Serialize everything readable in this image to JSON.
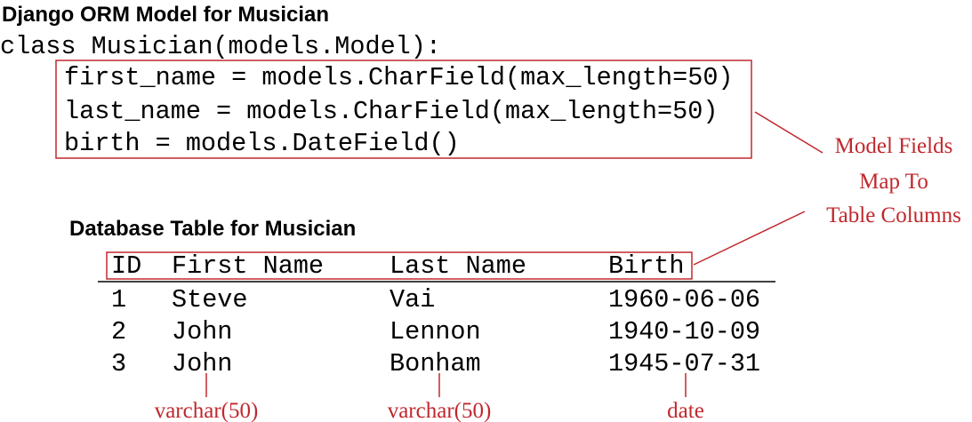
{
  "title": "Django ORM Model for Musician",
  "code": {
    "class_line": "class Musician(models.Model):",
    "fields": [
      "first_name = models.CharField(max_length=50)",
      "last_name = models.CharField(max_length=50)",
      "birth = models.DateField()"
    ]
  },
  "annotation": [
    "Model Fields",
    "Map To",
    "Table Columns"
  ],
  "table": {
    "title": "Database Table for Musician",
    "header": [
      "ID",
      "First Name",
      "Last Name",
      "Birth"
    ],
    "rows": [
      [
        "1",
        "Steve",
        "Vai",
        "1960-06-06"
      ],
      [
        "2",
        "John",
        "Lennon",
        "1940-10-09"
      ],
      [
        "3",
        "John",
        "Bonham",
        "1945-07-31"
      ]
    ],
    "types": [
      "varchar(50)",
      "varchar(50)",
      "date"
    ]
  }
}
